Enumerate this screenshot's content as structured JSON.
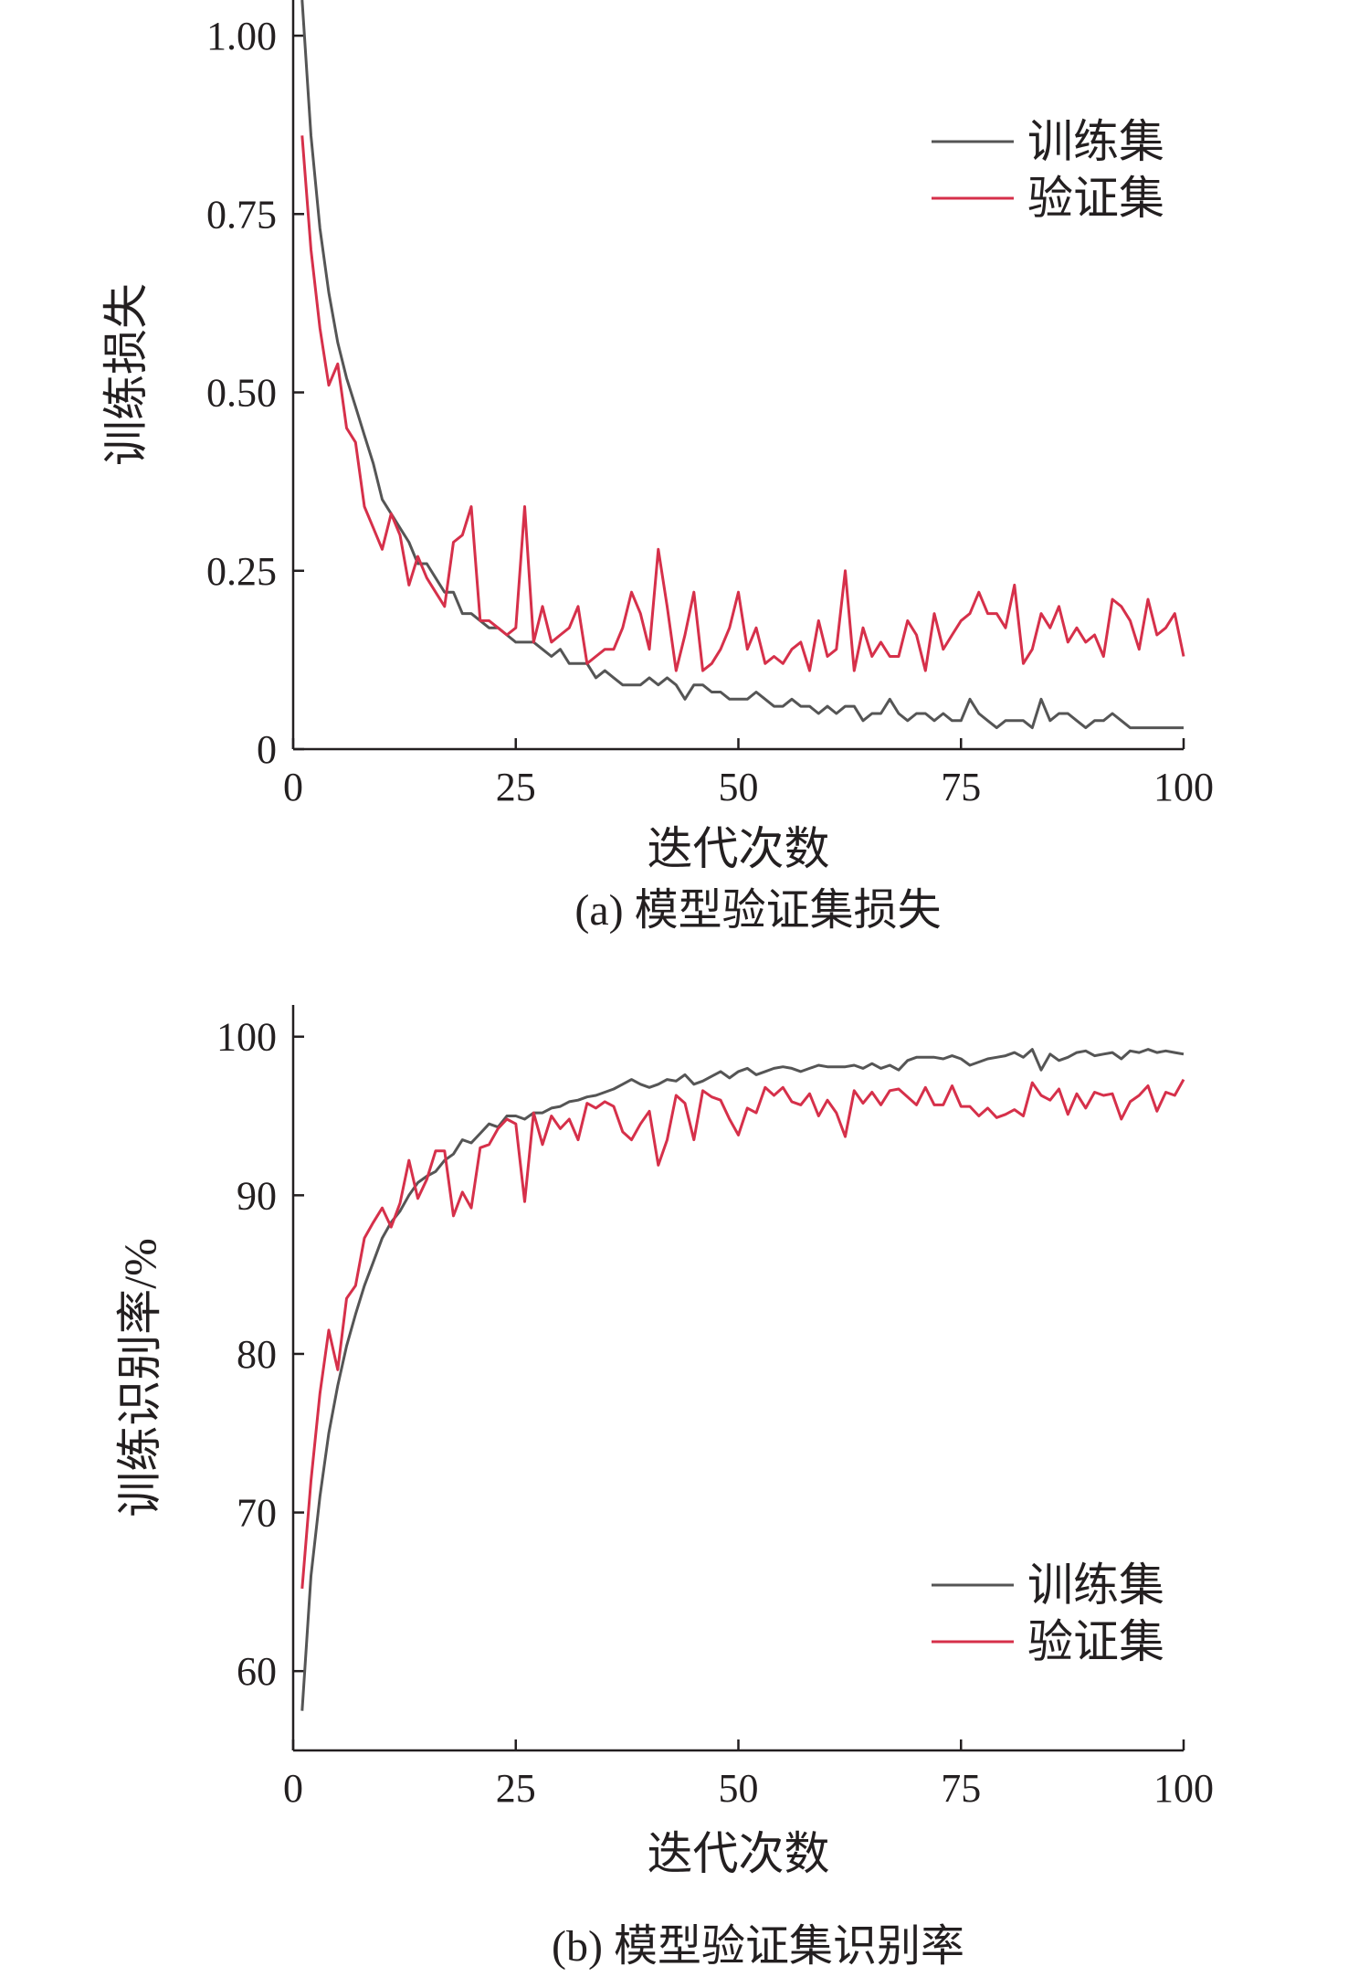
{
  "colors": {
    "train": "#555555",
    "val": "#d6304a",
    "axis": "#231f20"
  },
  "chart_data": [
    {
      "type": "line",
      "caption": "(a) 模型验证集损失",
      "xlabel": "迭代次数",
      "ylabel": "训练损失",
      "xlim": [
        0,
        100
      ],
      "ylim": [
        0,
        1.05
      ],
      "xticks": [
        0,
        25,
        50,
        75,
        100
      ],
      "yticks": [
        0,
        0.25,
        0.5,
        0.75,
        1.0
      ],
      "ytick_labels": [
        "0",
        "0.25",
        "0.50",
        "0.75",
        "1.00"
      ],
      "legend": "top-right",
      "series": [
        {
          "name": "训练集",
          "x": [
            1,
            2,
            3,
            4,
            5,
            6,
            7,
            8,
            9,
            10,
            11,
            12,
            13,
            14,
            15,
            16,
            17,
            18,
            19,
            20,
            21,
            22,
            23,
            24,
            25,
            26,
            27,
            28,
            29,
            30,
            31,
            32,
            33,
            34,
            35,
            36,
            37,
            38,
            39,
            40,
            41,
            42,
            43,
            44,
            45,
            46,
            47,
            48,
            49,
            50,
            51,
            52,
            53,
            54,
            55,
            56,
            57,
            58,
            59,
            60,
            61,
            62,
            63,
            64,
            65,
            66,
            67,
            68,
            69,
            70,
            71,
            72,
            73,
            74,
            75,
            76,
            77,
            78,
            79,
            80,
            81,
            82,
            83,
            84,
            85,
            86,
            87,
            88,
            89,
            90,
            91,
            92,
            93,
            94,
            95,
            96,
            97,
            98,
            99,
            100
          ],
          "y": [
            1.05,
            0.86,
            0.73,
            0.64,
            0.57,
            0.52,
            0.48,
            0.44,
            0.4,
            0.35,
            0.33,
            0.31,
            0.29,
            0.26,
            0.26,
            0.24,
            0.22,
            0.22,
            0.19,
            0.19,
            0.18,
            0.17,
            0.17,
            0.16,
            0.15,
            0.15,
            0.15,
            0.14,
            0.13,
            0.14,
            0.12,
            0.12,
            0.12,
            0.1,
            0.11,
            0.1,
            0.09,
            0.09,
            0.09,
            0.1,
            0.09,
            0.1,
            0.09,
            0.07,
            0.09,
            0.09,
            0.08,
            0.08,
            0.07,
            0.07,
            0.07,
            0.08,
            0.07,
            0.06,
            0.06,
            0.07,
            0.06,
            0.06,
            0.05,
            0.06,
            0.05,
            0.06,
            0.06,
            0.04,
            0.05,
            0.05,
            0.07,
            0.05,
            0.04,
            0.05,
            0.05,
            0.04,
            0.05,
            0.04,
            0.04,
            0.07,
            0.05,
            0.04,
            0.03,
            0.04,
            0.04,
            0.04,
            0.03,
            0.07,
            0.04,
            0.05,
            0.05,
            0.04,
            0.03,
            0.04,
            0.04,
            0.05,
            0.04,
            0.03,
            0.03,
            0.03,
            0.03,
            0.03,
            0.03,
            0.03
          ]
        },
        {
          "name": "验证集",
          "x": [
            1,
            2,
            3,
            4,
            5,
            6,
            7,
            8,
            9,
            10,
            11,
            12,
            13,
            14,
            15,
            16,
            17,
            18,
            19,
            20,
            21,
            22,
            23,
            24,
            25,
            26,
            27,
            28,
            29,
            30,
            31,
            32,
            33,
            34,
            35,
            36,
            37,
            38,
            39,
            40,
            41,
            42,
            43,
            44,
            45,
            46,
            47,
            48,
            49,
            50,
            51,
            52,
            53,
            54,
            55,
            56,
            57,
            58,
            59,
            60,
            61,
            62,
            63,
            64,
            65,
            66,
            67,
            68,
            69,
            70,
            71,
            72,
            73,
            74,
            75,
            76,
            77,
            78,
            79,
            80,
            81,
            82,
            83,
            84,
            85,
            86,
            87,
            88,
            89,
            90,
            91,
            92,
            93,
            94,
            95,
            96,
            97,
            98,
            99,
            100
          ],
          "y": [
            0.86,
            0.7,
            0.59,
            0.51,
            0.54,
            0.45,
            0.43,
            0.34,
            0.31,
            0.28,
            0.33,
            0.3,
            0.23,
            0.27,
            0.24,
            0.22,
            0.2,
            0.29,
            0.3,
            0.34,
            0.18,
            0.18,
            0.17,
            0.16,
            0.17,
            0.34,
            0.15,
            0.2,
            0.15,
            0.16,
            0.17,
            0.2,
            0.12,
            0.13,
            0.14,
            0.14,
            0.17,
            0.22,
            0.19,
            0.14,
            0.28,
            0.2,
            0.11,
            0.16,
            0.22,
            0.11,
            0.12,
            0.14,
            0.17,
            0.22,
            0.14,
            0.17,
            0.12,
            0.13,
            0.12,
            0.14,
            0.15,
            0.11,
            0.18,
            0.13,
            0.14,
            0.25,
            0.11,
            0.17,
            0.13,
            0.15,
            0.13,
            0.13,
            0.18,
            0.16,
            0.11,
            0.19,
            0.14,
            0.16,
            0.18,
            0.19,
            0.22,
            0.19,
            0.19,
            0.17,
            0.23,
            0.12,
            0.14,
            0.19,
            0.17,
            0.2,
            0.15,
            0.17,
            0.15,
            0.16,
            0.13,
            0.21,
            0.2,
            0.18,
            0.14,
            0.21,
            0.16,
            0.17,
            0.19,
            0.13
          ]
        }
      ]
    },
    {
      "type": "line",
      "caption": "(b) 模型验证集识别率",
      "xlabel": "迭代次数",
      "ylabel": "训练识别率/%",
      "xlim": [
        0,
        100
      ],
      "ylim": [
        55,
        102
      ],
      "xticks": [
        0,
        25,
        50,
        75,
        100
      ],
      "yticks": [
        60,
        70,
        80,
        90,
        100
      ],
      "ytick_labels": [
        "60",
        "70",
        "80",
        "90",
        "100"
      ],
      "legend": "bottom-right",
      "series": [
        {
          "name": "训练集",
          "x": [
            1,
            2,
            3,
            4,
            5,
            6,
            7,
            8,
            9,
            10,
            11,
            12,
            13,
            14,
            15,
            16,
            17,
            18,
            19,
            20,
            21,
            22,
            23,
            24,
            25,
            26,
            27,
            28,
            29,
            30,
            31,
            32,
            33,
            34,
            35,
            36,
            37,
            38,
            39,
            40,
            41,
            42,
            43,
            44,
            45,
            46,
            47,
            48,
            49,
            50,
            51,
            52,
            53,
            54,
            55,
            56,
            57,
            58,
            59,
            60,
            61,
            62,
            63,
            64,
            65,
            66,
            67,
            68,
            69,
            70,
            71,
            72,
            73,
            74,
            75,
            76,
            77,
            78,
            79,
            80,
            81,
            82,
            83,
            84,
            85,
            86,
            87,
            88,
            89,
            90,
            91,
            92,
            93,
            94,
            95,
            96,
            97,
            98,
            99,
            100
          ],
          "y": [
            57.5,
            66.0,
            71.0,
            75.0,
            78.0,
            80.5,
            82.5,
            84.3,
            85.8,
            87.3,
            88.3,
            89.0,
            90.0,
            90.8,
            91.2,
            91.5,
            92.2,
            92.6,
            93.5,
            93.3,
            93.9,
            94.5,
            94.3,
            95.0,
            95.0,
            94.8,
            95.2,
            95.2,
            95.5,
            95.6,
            95.9,
            96.0,
            96.2,
            96.3,
            96.5,
            96.7,
            97.0,
            97.3,
            97.0,
            96.8,
            97.0,
            97.3,
            97.2,
            97.6,
            97.0,
            97.2,
            97.5,
            97.8,
            97.4,
            97.8,
            98.0,
            97.6,
            97.8,
            98.0,
            98.1,
            98.0,
            97.8,
            98.0,
            98.2,
            98.1,
            98.1,
            98.1,
            98.2,
            98.0,
            98.3,
            98.0,
            98.2,
            97.9,
            98.5,
            98.7,
            98.7,
            98.7,
            98.6,
            98.8,
            98.6,
            98.2,
            98.4,
            98.6,
            98.7,
            98.8,
            99.0,
            98.7,
            99.2,
            97.9,
            98.9,
            98.5,
            98.7,
            99.0,
            99.1,
            98.8,
            98.9,
            99.0,
            98.6,
            99.1,
            99.0,
            99.2,
            99.0,
            99.1,
            99.0,
            98.9
          ]
        },
        {
          "name": "验证集",
          "x": [
            1,
            2,
            3,
            4,
            5,
            6,
            7,
            8,
            9,
            10,
            11,
            12,
            13,
            14,
            15,
            16,
            17,
            18,
            19,
            20,
            21,
            22,
            23,
            24,
            25,
            26,
            27,
            28,
            29,
            30,
            31,
            32,
            33,
            34,
            35,
            36,
            37,
            38,
            39,
            40,
            41,
            42,
            43,
            44,
            45,
            46,
            47,
            48,
            49,
            50,
            51,
            52,
            53,
            54,
            55,
            56,
            57,
            58,
            59,
            60,
            61,
            62,
            63,
            64,
            65,
            66,
            67,
            68,
            69,
            70,
            71,
            72,
            73,
            74,
            75,
            76,
            77,
            78,
            79,
            80,
            81,
            82,
            83,
            84,
            85,
            86,
            87,
            88,
            89,
            90,
            91,
            92,
            93,
            94,
            95,
            96,
            97,
            98,
            99,
            100
          ],
          "y": [
            65.2,
            72.0,
            77.5,
            81.5,
            79.0,
            83.5,
            84.3,
            87.3,
            88.3,
            89.2,
            88.0,
            89.5,
            92.2,
            89.8,
            91.0,
            92.8,
            92.8,
            88.7,
            90.2,
            89.2,
            93.0,
            93.2,
            94.2,
            94.8,
            94.5,
            89.6,
            95.2,
            93.2,
            95.0,
            94.2,
            94.8,
            93.5,
            95.8,
            95.5,
            95.9,
            95.6,
            94.0,
            93.5,
            94.5,
            95.3,
            91.9,
            93.5,
            96.3,
            95.8,
            93.5,
            96.6,
            96.2,
            96.0,
            94.8,
            93.8,
            95.5,
            95.2,
            96.8,
            96.3,
            96.8,
            95.9,
            95.7,
            96.4,
            95.0,
            96.0,
            95.2,
            93.7,
            96.6,
            95.8,
            96.5,
            95.7,
            96.6,
            96.7,
            96.2,
            95.7,
            96.8,
            95.7,
            95.7,
            96.9,
            95.6,
            95.6,
            95.0,
            95.5,
            94.9,
            95.1,
            95.4,
            95.0,
            97.1,
            96.3,
            96.0,
            96.7,
            95.1,
            96.4,
            95.5,
            96.5,
            96.3,
            96.4,
            94.8,
            95.9,
            96.3,
            96.9,
            95.3,
            96.5,
            96.3,
            97.3
          ]
        }
      ]
    }
  ]
}
